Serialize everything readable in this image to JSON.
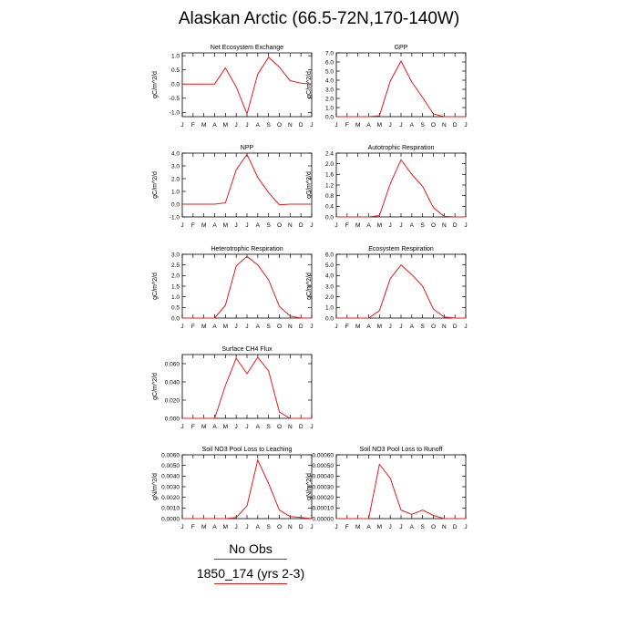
{
  "page_title": "Alaskan Arctic (66.5-72N,170-140W)",
  "legend": [
    {
      "label": "No Obs",
      "color": "#1f4fd0"
    },
    {
      "label": "1850_174 (yrs 2-3)",
      "color": "#e41a1c"
    }
  ],
  "colors": {
    "series": "#e41a1c",
    "axis": "#000000"
  },
  "chart_data": [
    {
      "type": "line",
      "title": "Net Ecosystem Exchange",
      "ylabel": "gC/m^2/d",
      "categories": [
        "J",
        "F",
        "M",
        "A",
        "M",
        "J",
        "J",
        "A",
        "S",
        "O",
        "N",
        "D",
        "J"
      ],
      "yticks": [
        "1.0",
        "0.5",
        "0.0",
        "-0.5",
        "-1.0"
      ],
      "ylim": [
        -1.15,
        1.1
      ],
      "series": [
        {
          "values": [
            0.0,
            0.0,
            0.0,
            0.0,
            0.57,
            -0.1,
            -1.05,
            0.35,
            0.95,
            0.6,
            0.12,
            0.03,
            0.0
          ]
        }
      ]
    },
    {
      "type": "line",
      "title": "GPP",
      "ylabel": "gC/m^2/d",
      "categories": [
        "J",
        "F",
        "M",
        "A",
        "M",
        "J",
        "J",
        "A",
        "S",
        "O",
        "N",
        "D",
        "J"
      ],
      "yticks": [
        "7.0",
        "6.0",
        "5.0",
        "4.0",
        "3.0",
        "2.0",
        "1.0",
        "0.0"
      ],
      "ylim": [
        0,
        7
      ],
      "series": [
        {
          "values": [
            0.0,
            0.0,
            0.0,
            0.0,
            0.1,
            3.9,
            6.1,
            3.8,
            2.1,
            0.3,
            0.0,
            0.0,
            0.0
          ]
        }
      ]
    },
    {
      "type": "line",
      "title": "NPP",
      "ylabel": "gC/m^2/d",
      "categories": [
        "J",
        "F",
        "M",
        "A",
        "M",
        "J",
        "J",
        "A",
        "S",
        "O",
        "N",
        "D",
        "J"
      ],
      "yticks": [
        "4.0",
        "3.0",
        "2.0",
        "1.0",
        "0.0",
        "-1.0"
      ],
      "ylim": [
        -1,
        4
      ],
      "series": [
        {
          "values": [
            0.0,
            0.0,
            0.0,
            0.0,
            0.1,
            2.7,
            3.9,
            2.1,
            0.9,
            -0.05,
            0.0,
            0.0,
            0.0
          ]
        }
      ]
    },
    {
      "type": "line",
      "title": "Autotrophic Respiration",
      "ylabel": "gC/m^2/d",
      "categories": [
        "J",
        "F",
        "M",
        "A",
        "M",
        "J",
        "J",
        "A",
        "S",
        "O",
        "N",
        "D",
        "J"
      ],
      "yticks": [
        "2.4",
        "2.0",
        "1.6",
        "1.2",
        "0.8",
        "0.4",
        "0.0"
      ],
      "ylim": [
        0,
        2.4
      ],
      "series": [
        {
          "values": [
            0.0,
            0.0,
            0.0,
            0.0,
            0.05,
            1.25,
            2.15,
            1.6,
            1.15,
            0.35,
            0.02,
            0.0,
            0.0
          ]
        }
      ]
    },
    {
      "type": "line",
      "title": "Heterotrophic Respiration",
      "ylabel": "gC/m^2/d",
      "categories": [
        "J",
        "F",
        "M",
        "A",
        "M",
        "J",
        "J",
        "A",
        "S",
        "O",
        "N",
        "D",
        "J"
      ],
      "yticks": [
        "3.0",
        "2.5",
        "2.0",
        "1.5",
        "1.0",
        "0.5",
        "0.0"
      ],
      "ylim": [
        0,
        3
      ],
      "series": [
        {
          "values": [
            0.0,
            0.0,
            0.0,
            0.0,
            0.6,
            2.45,
            2.9,
            2.5,
            1.8,
            0.55,
            0.1,
            0.0,
            0.0
          ]
        }
      ]
    },
    {
      "type": "line",
      "title": "Ecosystem Respiration",
      "ylabel": "gC/m^2/d",
      "categories": [
        "J",
        "F",
        "M",
        "A",
        "M",
        "J",
        "J",
        "A",
        "S",
        "O",
        "N",
        "D",
        "J"
      ],
      "yticks": [
        "6.0",
        "5.0",
        "4.0",
        "3.0",
        "2.0",
        "1.0",
        "0.0"
      ],
      "ylim": [
        0,
        6
      ],
      "series": [
        {
          "values": [
            0.0,
            0.0,
            0.0,
            0.0,
            0.7,
            3.7,
            5.0,
            4.1,
            3.0,
            0.85,
            0.1,
            0.0,
            0.0
          ]
        }
      ]
    },
    {
      "type": "line",
      "title": "Surface CH4 Flux",
      "ylabel": "gC/m^2/d",
      "categories": [
        "J",
        "F",
        "M",
        "A",
        "M",
        "J",
        "J",
        "A",
        "S",
        "O",
        "N",
        "D",
        "J"
      ],
      "yticks": [
        "0.060",
        "0.040",
        "0.020",
        "0.000"
      ],
      "ylim": [
        0,
        0.07
      ],
      "series": [
        {
          "values": [
            0.0,
            0.0,
            0.0,
            0.0,
            0.036,
            0.066,
            0.049,
            0.067,
            0.052,
            0.007,
            0.0,
            0.0,
            0.0
          ]
        }
      ]
    },
    {
      "type": "line",
      "title": "Soil NO3 Pool Loss to Leaching",
      "ylabel": "gN/m^2/d",
      "categories": [
        "J",
        "F",
        "M",
        "A",
        "M",
        "J",
        "J",
        "A",
        "S",
        "O",
        "N",
        "D",
        "J"
      ],
      "yticks": [
        "0.0060",
        "0.0050",
        "0.0040",
        "0.0030",
        "0.0020",
        "0.0010",
        "0.0000"
      ],
      "ylim": [
        0,
        0.006
      ],
      "series": [
        {
          "values": [
            0.0,
            0.0,
            0.0,
            0.0,
            0.0,
            0.0001,
            0.0012,
            0.0055,
            0.0033,
            0.0008,
            0.0002,
            0.0001,
            0.0
          ]
        }
      ]
    },
    {
      "type": "line",
      "title": "Soil NO3 Pool Loss to Runoff",
      "ylabel": "gN/m^2/d",
      "categories": [
        "J",
        "F",
        "M",
        "A",
        "M",
        "J",
        "J",
        "A",
        "S",
        "O",
        "N",
        "D",
        "J"
      ],
      "yticks": [
        "0.00060",
        "0.00050",
        "0.00040",
        "0.00030",
        "0.00020",
        "0.00010",
        "0.00000"
      ],
      "ylim": [
        0,
        0.0006
      ],
      "series": [
        {
          "values": [
            0.0,
            0.0,
            0.0,
            0.0,
            0.00051,
            0.00038,
            8e-05,
            4e-05,
            8e-05,
            3e-05,
            0.0,
            0.0,
            0.0
          ]
        }
      ]
    }
  ]
}
